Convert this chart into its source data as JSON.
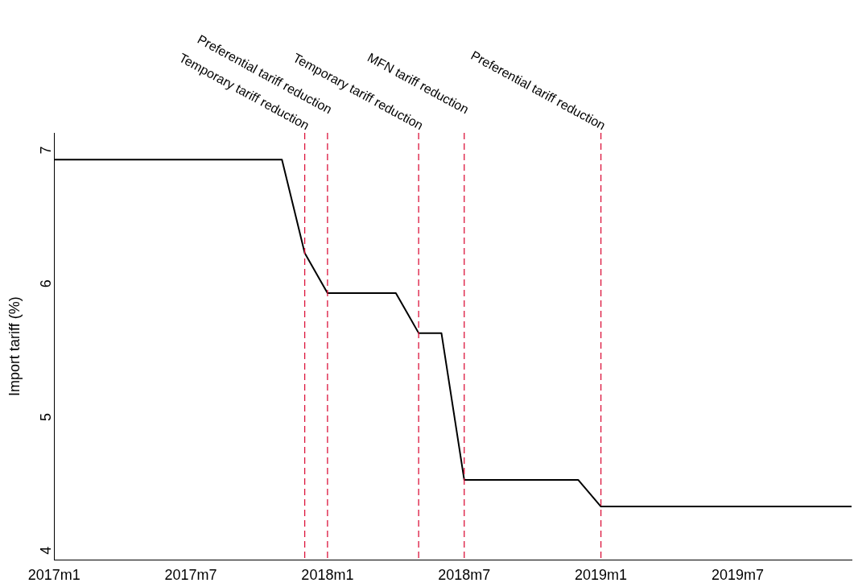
{
  "chart_data": {
    "type": "line",
    "ylabel": "Import tariff (%)",
    "x": [
      "2017-01",
      "2017-11",
      "2017-12",
      "2018-01",
      "2018-04",
      "2018-05",
      "2018-06",
      "2018-07",
      "2018-12",
      "2019-01",
      "2019-12"
    ],
    "series": [
      {
        "color": "#000000",
        "values": [
          6.9,
          6.9,
          6.2,
          5.9,
          5.9,
          5.6,
          5.6,
          4.5,
          4.5,
          4.3,
          4.3
        ]
      }
    ],
    "xlim": [
      "2017-01",
      "2019-12"
    ],
    "xticks": [
      {
        "value": "2017-01",
        "label": "2017m1"
      },
      {
        "value": "2017-07",
        "label": "2017m7"
      },
      {
        "value": "2018-01",
        "label": "2018m1"
      },
      {
        "value": "2018-07",
        "label": "2018m7"
      },
      {
        "value": "2019-01",
        "label": "2019m1"
      },
      {
        "value": "2019-07",
        "label": "2019m7"
      }
    ],
    "ylim": [
      3.9,
      7.1
    ],
    "yticks": [
      4,
      5,
      6,
      7
    ],
    "grid": false,
    "legend": false,
    "marker": "none",
    "line_style": "solid",
    "ref_lines": [
      {
        "axis": "x",
        "value": "2017-12",
        "label": "Temporary tariff reduction",
        "color": "#dc143c",
        "line_style": "dashed"
      },
      {
        "axis": "x",
        "value": "2018-01",
        "label": "Preferential tariff reduction",
        "color": "#dc143c",
        "line_style": "dashed"
      },
      {
        "axis": "x",
        "value": "2018-05",
        "label": "Temporary tariff reduction",
        "color": "#dc143c",
        "line_style": "dashed"
      },
      {
        "axis": "x",
        "value": "2018-07",
        "label": "MFN tariff reduction",
        "color": "#dc143c",
        "line_style": "dashed"
      },
      {
        "axis": "x",
        "value": "2019-01",
        "label": "Preferential tariff reduction",
        "color": "#dc143c",
        "line_style": "dashed"
      }
    ]
  }
}
